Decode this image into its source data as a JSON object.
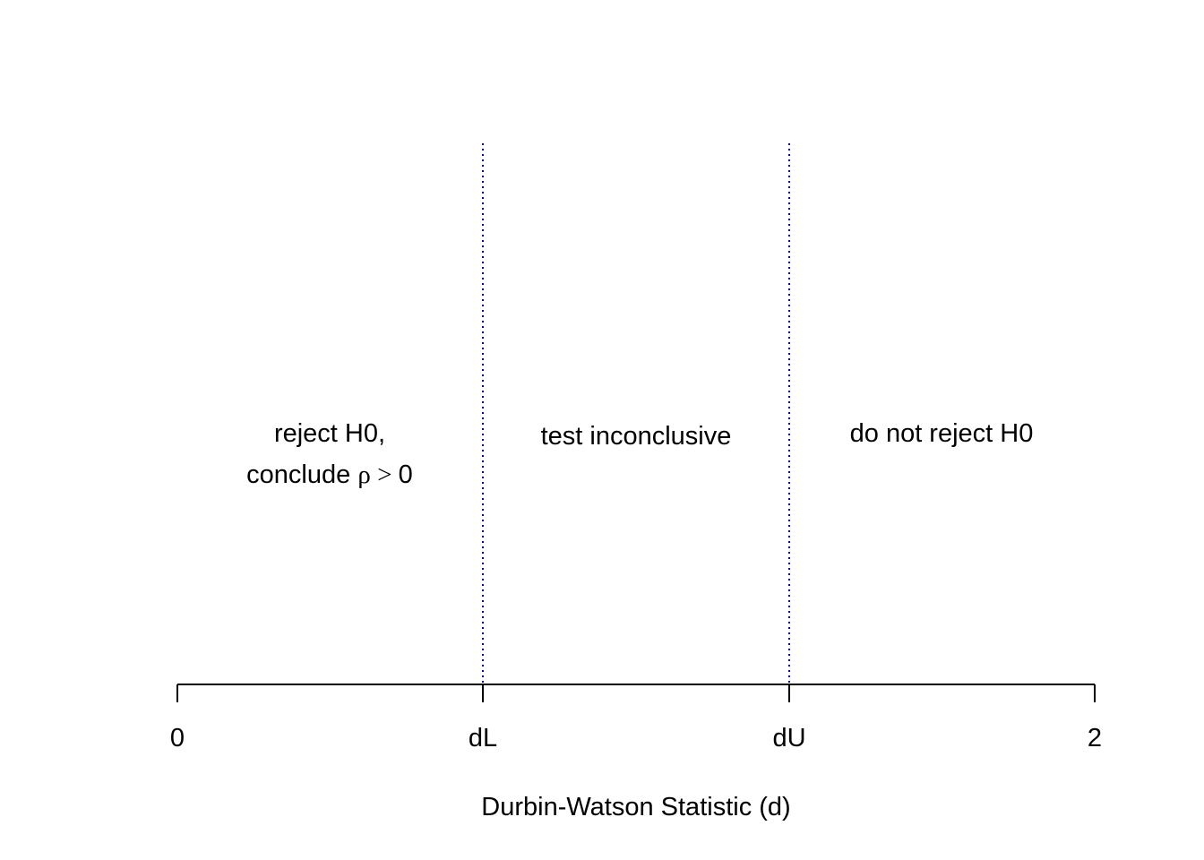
{
  "diagram": {
    "colors": {
      "axis": "#000000",
      "boundary_lines": "#0000cc",
      "text": "#000000",
      "background": "#ffffff"
    },
    "axis": {
      "title": "Durbin-Watson Statistic (d)",
      "ticks": [
        {
          "label": "0"
        },
        {
          "label": "dL"
        },
        {
          "label": "dU"
        },
        {
          "label": "2"
        }
      ]
    },
    "boundaries": [
      {
        "name": "dL",
        "style": "dotted"
      },
      {
        "name": "dU",
        "style": "dotted"
      }
    ],
    "regions": [
      {
        "line1": "reject H0,",
        "line2_prefix": "conclude ",
        "symbol": "ρ",
        "relation": " > ",
        "value": "0"
      },
      {
        "line1": "test inconclusive"
      },
      {
        "line1": "do not reject H0"
      }
    ]
  }
}
